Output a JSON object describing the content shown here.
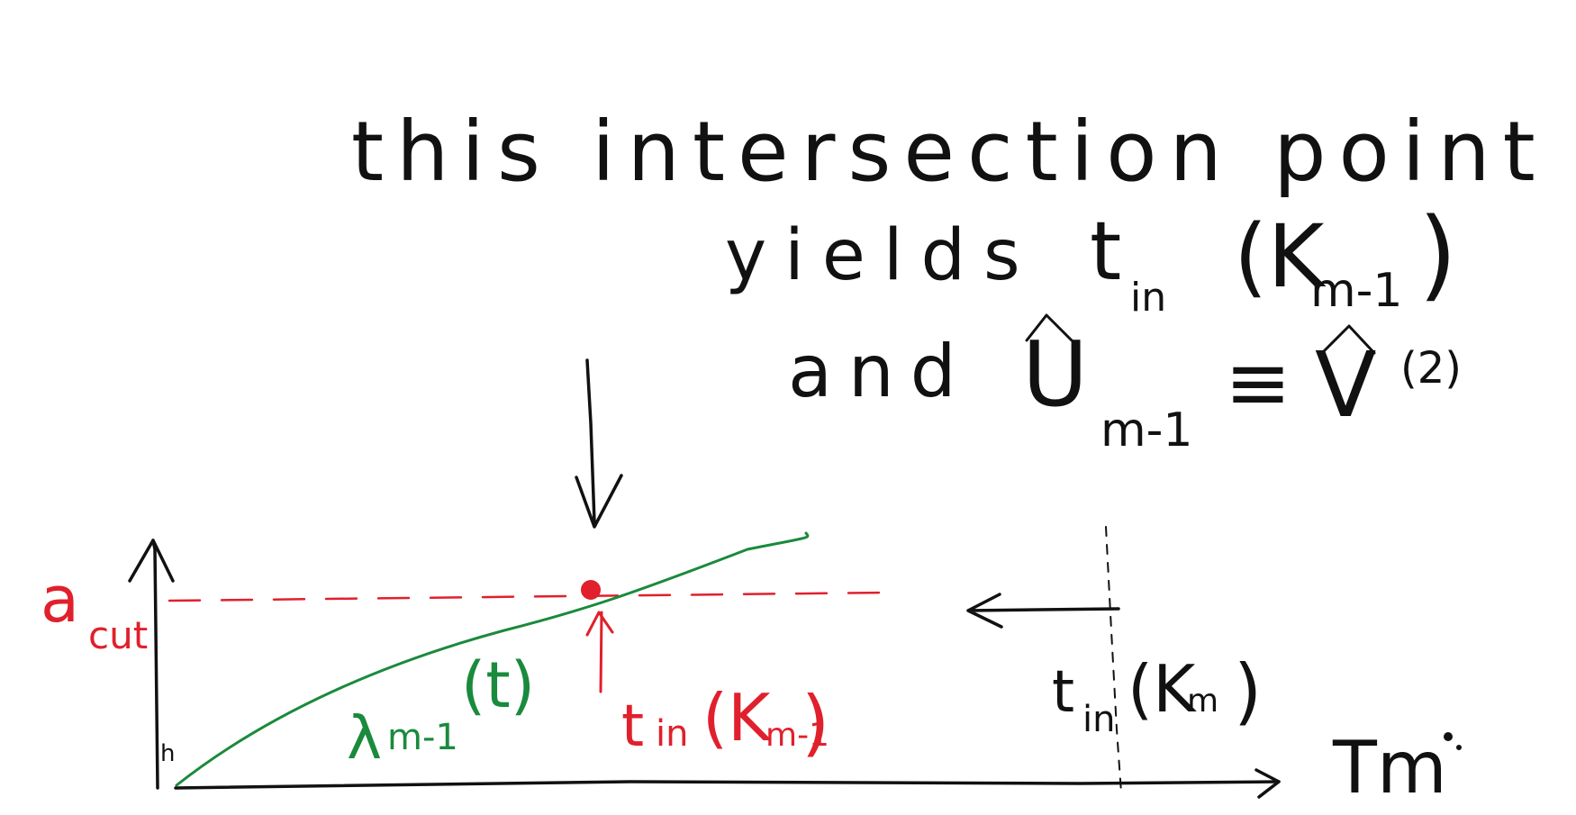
{
  "annotation": {
    "line1": "this intersection point",
    "line2_prefix": "yields",
    "line2_symbol": "t",
    "line2_sub": "in",
    "line2_arg": "(K",
    "line2_arg_sub": "m-1",
    "line2_close": ")",
    "line3_prefix": "and",
    "line3_symbol": "U",
    "line3_sub": "m-1",
    "line3_equiv": "≡",
    "line3_rhs": "V",
    "line3_rhs_sup": "(2)"
  },
  "chart": {
    "threshold_label": "a",
    "threshold_sub": "cut",
    "curve_label": "λ",
    "curve_sub": "m-1",
    "curve_arg": "(t)",
    "intersection_label": "t",
    "intersection_sub": "in",
    "intersection_arg": "(K",
    "intersection_arg_sub": "m-1",
    "intersection_close": ")",
    "next_label": "t",
    "next_sub": "in",
    "next_arg": "(K",
    "next_arg_sub": "m",
    "next_close": ")",
    "x_axis_label": "Tm",
    "origin_tick": "h"
  },
  "colors": {
    "ink": "#111111",
    "threshold": "#e0202c",
    "curve": "#1a8a3c",
    "point": "#e0202c"
  }
}
